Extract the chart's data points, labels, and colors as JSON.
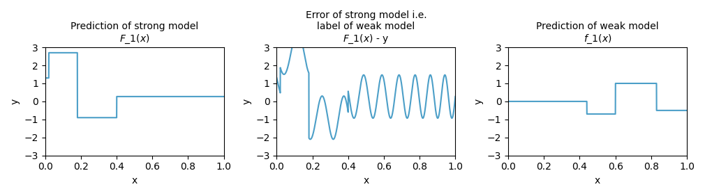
{
  "fig_width": 10.1,
  "fig_height": 2.82,
  "dpi": 100,
  "line_color": "#4c9fc8",
  "line_width": 1.5,
  "ylim": [
    -3,
    3
  ],
  "xlim": [
    0.0,
    1.0
  ],
  "xlabel": "x",
  "ylabel": "y",
  "plot1_title": "Prediction of strong model\nF_1(x)",
  "plot2_title": "Error of strong model i.e.\nlabel of weak model\nF_1(x) - y",
  "plot3_title": "Prediction of weak model\nf_1(x)",
  "strong_model": {
    "breakpoints": [
      0.0,
      0.02,
      0.18,
      0.4,
      1.0
    ],
    "values": [
      1.3,
      2.7,
      -0.9,
      0.27,
      0.27
    ]
  },
  "weak_model": {
    "breakpoints": [
      0.0,
      0.44,
      0.6,
      0.83,
      1.0
    ],
    "values": [
      0.0,
      -0.7,
      1.0,
      -0.5,
      -0.5
    ]
  },
  "sine_amplitude": 1.2,
  "sine_freq_a": 4.0,
  "sine_freq_b": 2.0,
  "sine_phase": 1.5707963267948966
}
